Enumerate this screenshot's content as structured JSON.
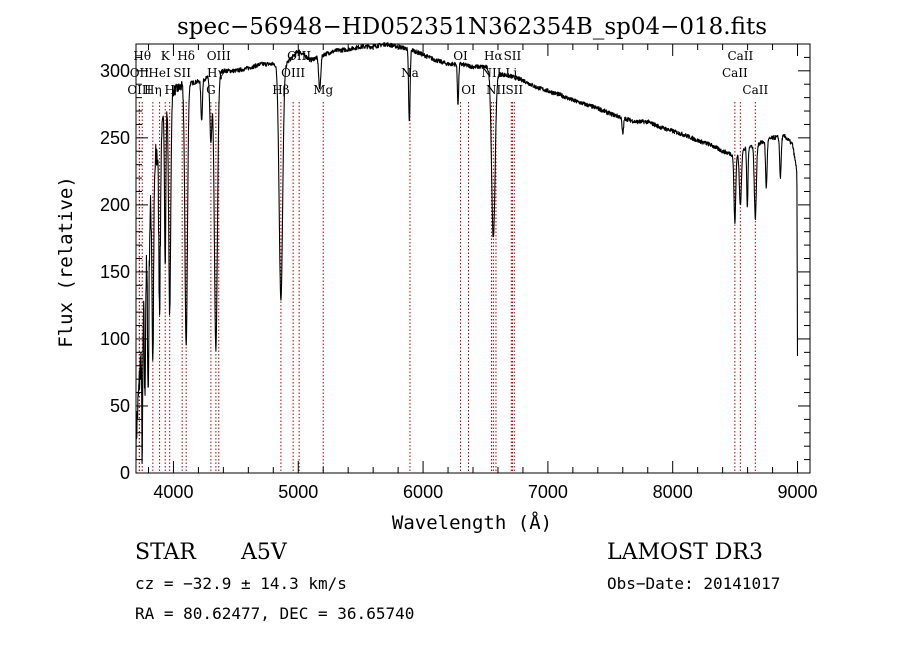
{
  "chart_data": {
    "type": "line",
    "title": "spec−56948−HD052351N362354B_sp04−018.fits",
    "xlabel": "Wavelength (Å)",
    "ylabel": "Flux (relative)",
    "xlim": [
      3700,
      9100
    ],
    "ylim": [
      0,
      320
    ],
    "x_ticks": [
      4000,
      5000,
      6000,
      7000,
      8000,
      9000
    ],
    "y_ticks": [
      0,
      50,
      100,
      150,
      200,
      250,
      300
    ],
    "continuum": [
      [
        3700,
        25
      ],
      [
        3760,
        120
      ],
      [
        3820,
        200
      ],
      [
        3880,
        250
      ],
      [
        3950,
        275
      ],
      [
        4000,
        285
      ],
      [
        4100,
        290
      ],
      [
        4200,
        292
      ],
      [
        4300,
        296
      ],
      [
        4400,
        300
      ],
      [
        4500,
        300
      ],
      [
        4600,
        302
      ],
      [
        4700,
        305
      ],
      [
        4800,
        305
      ],
      [
        4900,
        305
      ],
      [
        5000,
        315
      ],
      [
        5100,
        308
      ],
      [
        5200,
        312
      ],
      [
        5300,
        315
      ],
      [
        5400,
        316
      ],
      [
        5500,
        318
      ],
      [
        5600,
        318
      ],
      [
        5700,
        320
      ],
      [
        5800,
        318
      ],
      [
        5900,
        316
      ],
      [
        6000,
        312
      ],
      [
        6100,
        308
      ],
      [
        6200,
        305
      ],
      [
        6300,
        305
      ],
      [
        6400,
        303
      ],
      [
        6500,
        303
      ],
      [
        6600,
        298
      ],
      [
        6700,
        296
      ],
      [
        6800,
        293
      ],
      [
        6900,
        288
      ],
      [
        7000,
        285
      ],
      [
        7100,
        282
      ],
      [
        7200,
        278
      ],
      [
        7300,
        275
      ],
      [
        7400,
        272
      ],
      [
        7500,
        268
      ],
      [
        7600,
        265
      ],
      [
        7700,
        262
      ],
      [
        7800,
        262
      ],
      [
        7900,
        258
      ],
      [
        8000,
        255
      ],
      [
        8100,
        252
      ],
      [
        8200,
        248
      ],
      [
        8300,
        245
      ],
      [
        8400,
        240
      ],
      [
        8500,
        237
      ],
      [
        8600,
        243
      ],
      [
        8700,
        246
      ],
      [
        8800,
        250
      ],
      [
        8900,
        251
      ],
      [
        8960,
        245
      ],
      [
        8995,
        225
      ],
      [
        9000,
        80
      ]
    ],
    "absorption_features": [
      {
        "center": 3750,
        "depth": 90,
        "width": 4
      },
      {
        "center": 3771,
        "depth": 80,
        "width": 4
      },
      {
        "center": 3798,
        "depth": 110,
        "width": 5
      },
      {
        "center": 3835,
        "depth": 130,
        "width": 6
      },
      {
        "center": 3889,
        "depth": 125,
        "width": 7
      },
      {
        "center": 3934,
        "depth": 115,
        "width": 5
      },
      {
        "center": 3970,
        "depth": 160,
        "width": 8
      },
      {
        "center": 4102,
        "depth": 195,
        "width": 10
      },
      {
        "center": 4226,
        "depth": 30,
        "width": 6
      },
      {
        "center": 4300,
        "depth": 50,
        "width": 8
      },
      {
        "center": 4340,
        "depth": 205,
        "width": 12
      },
      {
        "center": 4861,
        "depth": 175,
        "width": 14
      },
      {
        "center": 5172,
        "depth": 25,
        "width": 8
      },
      {
        "center": 5890,
        "depth": 55,
        "width": 6
      },
      {
        "center": 6280,
        "depth": 30,
        "width": 5
      },
      {
        "center": 6563,
        "depth": 125,
        "width": 14
      },
      {
        "center": 7600,
        "depth": 12,
        "width": 6
      },
      {
        "center": 8498,
        "depth": 50,
        "width": 7
      },
      {
        "center": 8542,
        "depth": 40,
        "width": 8
      },
      {
        "center": 8598,
        "depth": 45,
        "width": 5
      },
      {
        "center": 8662,
        "depth": 55,
        "width": 8
      },
      {
        "center": 8750,
        "depth": 35,
        "width": 6
      },
      {
        "center": 8863,
        "depth": 30,
        "width": 6
      }
    ],
    "line_markers": [
      {
        "wavelength": 3750,
        "label": "Hθ",
        "row": 0
      },
      {
        "wavelength": 3727,
        "label": "OII",
        "row": 1
      },
      {
        "wavelength": 3727,
        "label": "OIII",
        "row": 2
      },
      {
        "wavelength": 3835,
        "label": "Hη",
        "row": 2
      },
      {
        "wavelength": 3889,
        "label": "HeI",
        "row": 1
      },
      {
        "wavelength": 3934,
        "label": "K",
        "row": 0
      },
      {
        "wavelength": 3970,
        "label": "H",
        "row": 2
      },
      {
        "wavelength": 4070,
        "label": "SII",
        "row": 1
      },
      {
        "wavelength": 4102,
        "label": "Hδ",
        "row": 0
      },
      {
        "wavelength": 4300,
        "label": "G",
        "row": 2
      },
      {
        "wavelength": 4340,
        "label": "Hγ",
        "row": 1
      },
      {
        "wavelength": 4363,
        "label": "OIII",
        "row": 0
      },
      {
        "wavelength": 4861,
        "label": "Hβ",
        "row": 2
      },
      {
        "wavelength": 4959,
        "label": "OIII",
        "row": 1
      },
      {
        "wavelength": 5007,
        "label": "OIII",
        "row": 0
      },
      {
        "wavelength": 5200,
        "label": "Mg",
        "row": 2
      },
      {
        "wavelength": 5895,
        "label": "Na",
        "row": 1
      },
      {
        "wavelength": 6300,
        "label": "OI",
        "row": 0
      },
      {
        "wavelength": 6364,
        "label": "OI",
        "row": 2
      },
      {
        "wavelength": 6548,
        "label": "NII",
        "row": 1
      },
      {
        "wavelength": 6563,
        "label": "Hα",
        "row": 0
      },
      {
        "wavelength": 6584,
        "label": "NII",
        "row": 2
      },
      {
        "wavelength": 6707,
        "label": "Li",
        "row": 1
      },
      {
        "wavelength": 6716,
        "label": "SII",
        "row": 0
      },
      {
        "wavelength": 6731,
        "label": "SII",
        "row": 2
      },
      {
        "wavelength": 8498,
        "label": "CaII",
        "row": 1
      },
      {
        "wavelength": 8542,
        "label": "CaII",
        "row": 0
      },
      {
        "wavelength": 8662,
        "label": "CaII",
        "row": 2
      }
    ]
  },
  "info": {
    "class": "STAR",
    "subclass": "A5V",
    "cz": "cz = −32.9 ± 14.3 km/s",
    "coords": "RA =  80.62477, DEC =  36.65740",
    "survey": "LAMOST DR3",
    "obs_date": "Obs−Date: 20141017"
  },
  "colors": {
    "spectrum": "#000000",
    "marker": "#b00000",
    "axes": "#000000"
  }
}
